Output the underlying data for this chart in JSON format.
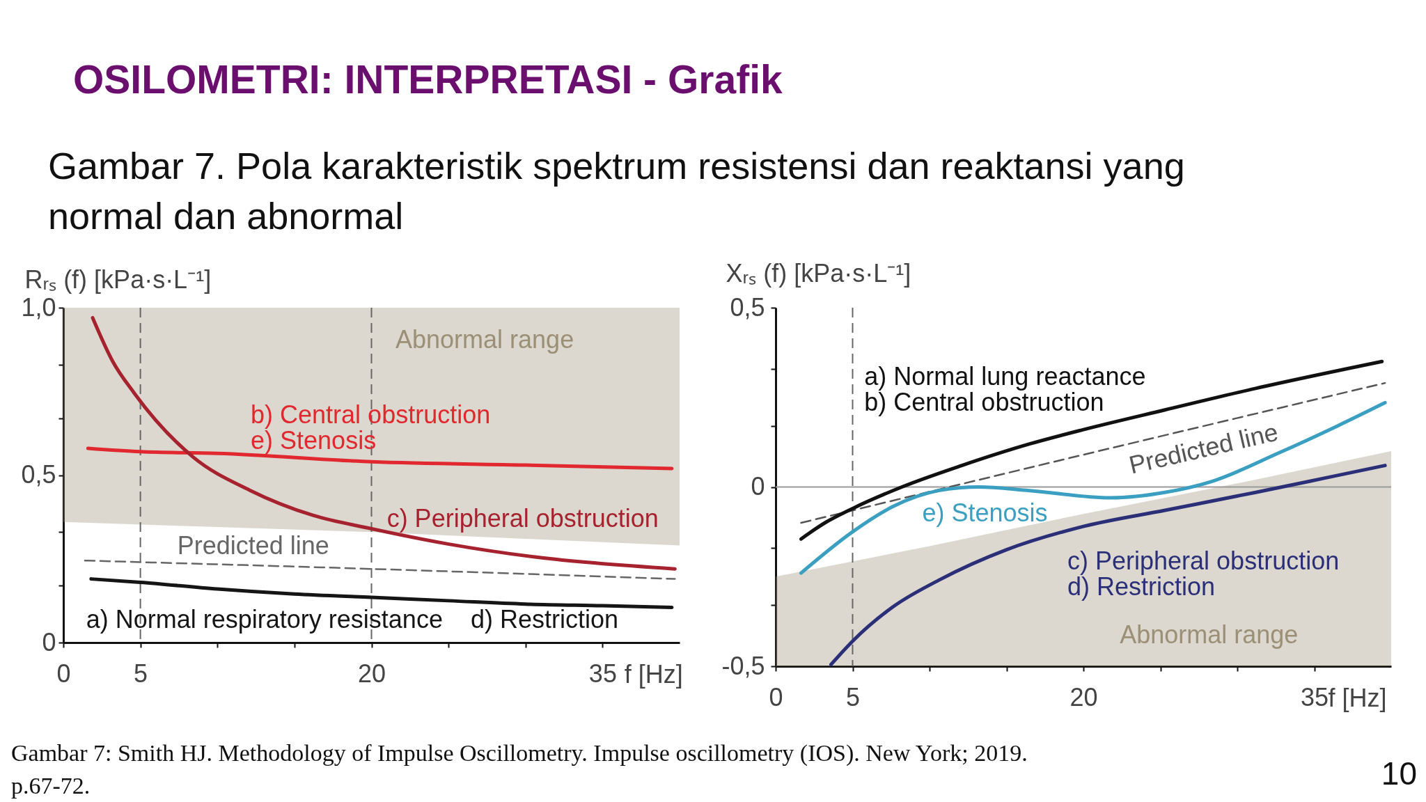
{
  "chart_data": [
    {
      "type": "line",
      "title": "OSILOMETRI: INTERPRETASI - Grafik",
      "subtitle": "Gambar 7. Pola karakteristik spektrum resistensi dan reaktansi yang normal dan abnormal",
      "xlabel": "f [Hz]",
      "ylabel": "Rᵣₛ (f) [kPa·s·L⁻¹]",
      "xlim": [
        0,
        40
      ],
      "xticks": [
        0,
        5,
        {
          "value": 10,
          "label": null
        },
        {
          "value": 15,
          "label": null
        },
        20,
        {
          "value": 25,
          "label": null
        },
        {
          "value": 30,
          "label": null
        },
        35
      ],
      "ylim": [
        0,
        1
      ],
      "yticks": [
        0,
        {
          "value": 0.17,
          "label": null
        },
        {
          "value": 0.33,
          "label": null
        },
        {
          "value": 0.5,
          "label": "0,5"
        },
        {
          "value": 0.67,
          "label": null
        },
        {
          "value": 0.83,
          "label": null
        },
        {
          "value": 1,
          "label": "1,0"
        }
      ],
      "ref_lines": [
        {
          "axis": "x",
          "value": 5,
          "color": "#666666",
          "line_style": "dashed"
        },
        {
          "axis": "x",
          "value": 20,
          "color": "#666666",
          "line_style": "dashed"
        }
      ],
      "series": [
        {
          "name": "Abnormal range",
          "color": "#9b9076",
          "x": [
            0,
            10,
            20,
            30,
            40
          ],
          "values": [
            null,
            null,
            null,
            null,
            null
          ],
          "lower": [
            0.36,
            0.345,
            0.33,
            0.31,
            0.29
          ],
          "upper": [
            1,
            1,
            1,
            1,
            1
          ]
        },
        {
          "name": "Predicted line",
          "color": "#666666",
          "line_style": "dashed",
          "x": [
            1.4,
            20,
            39.7
          ],
          "values": [
            0.245,
            0.22,
            0.19
          ]
        },
        {
          "name": "a) Normal respiratory resistance    d) Restriction",
          "color": "#151515",
          "x": [
            1.8,
            5,
            10,
            15,
            20,
            25,
            30,
            35,
            39.5
          ],
          "values": [
            0.19,
            0.18,
            0.16,
            0.145,
            0.135,
            0.125,
            0.115,
            0.11,
            0.105
          ]
        },
        {
          "name": "b) Central obstruction\ne) Stenosis",
          "color": "#e0282e",
          "x": [
            1.6,
            5,
            10,
            20,
            30,
            39.5
          ],
          "values": [
            0.58,
            0.57,
            0.565,
            0.54,
            0.53,
            0.52
          ]
        },
        {
          "name": "c) Peripheral obstruction",
          "color": "#a5222e",
          "x": [
            1.9,
            3.2,
            4.6,
            8.4,
            12.1,
            16.2,
            20,
            24.9,
            30.7,
            39.7
          ],
          "values": [
            0.97,
            0.84,
            0.745,
            0.555,
            0.455,
            0.38,
            0.34,
            0.295,
            0.255,
            0.22
          ]
        }
      ]
    },
    {
      "type": "line",
      "xlabel": "f [Hz]",
      "ylabel": "Xᵣₛ (f) [kPa·s·L⁻¹]",
      "xlim": [
        0,
        40
      ],
      "xticks": [
        0,
        5,
        {
          "value": 10,
          "label": null
        },
        {
          "value": 15,
          "label": null
        },
        20,
        {
          "value": 25,
          "label": null
        },
        {
          "value": 30,
          "label": null
        },
        35
      ],
      "ylim": [
        -0.5,
        0.5
      ],
      "yticks": [
        {
          "value": -0.5,
          "label": "-0,5"
        },
        {
          "value": -0.33,
          "label": null
        },
        {
          "value": -0.17,
          "label": null
        },
        0,
        {
          "value": 0.17,
          "label": null
        },
        {
          "value": 0.33,
          "label": null
        },
        {
          "value": 0.5,
          "label": "0,5"
        }
      ],
      "ref_lines": [
        {
          "axis": "x",
          "value": 5,
          "color": "#666666",
          "line_style": "dashed"
        },
        {
          "axis": "y",
          "value": 0,
          "color": "#9a9a9a",
          "line_style": "solid"
        }
      ],
      "series": [
        {
          "name": "Abnormal range",
          "color": "#9b9076",
          "x": [
            0,
            10,
            20,
            30,
            40
          ],
          "values": [
            null,
            null,
            null,
            null,
            null
          ],
          "lower": [
            -0.5,
            -0.5,
            -0.5,
            -0.5,
            -0.5
          ],
          "upper": [
            -0.25,
            -0.165,
            -0.075,
            0.01,
            0.1
          ]
        },
        {
          "name": "Predicted line",
          "color": "#555555",
          "line_style": "dashed",
          "x": [
            1.65,
            20,
            39.6
          ],
          "values": [
            -0.1,
            0.09,
            0.29
          ]
        },
        {
          "name": "a) Normal lung reactance\nb) Central obstruction",
          "color": "#111111",
          "x": [
            1.65,
            3.2,
            5,
            8.2,
            12.1,
            16.5,
            20,
            25.3,
            31.2,
            39.4
          ],
          "values": [
            -0.145,
            -0.1,
            -0.06,
            0,
            0.06,
            0.12,
            0.16,
            0.215,
            0.275,
            0.35
          ]
        },
        {
          "name": "e) Stenosis",
          "color": "#3a9fc0",
          "x": [
            1.65,
            5,
            7.6,
            10.6,
            13.2,
            16.5,
            21.8,
            25.3,
            28.3,
            32.7,
            36.5,
            39.6
          ],
          "values": [
            -0.24,
            -0.125,
            -0.055,
            -0.01,
            0,
            -0.01,
            -0.03,
            -0.015,
            0.015,
            0.095,
            0.17,
            0.235
          ]
        },
        {
          "name": "c) Peripheral obstruction\nd) Restriction",
          "color": "#2b2f78",
          "x": [
            3.6,
            5,
            7.6,
            10.6,
            15,
            20,
            25.3,
            31.2,
            35.7,
            39.6
          ],
          "values": [
            -0.495,
            -0.43,
            -0.335,
            -0.26,
            -0.175,
            -0.11,
            -0.065,
            -0.015,
            0.025,
            0.06
          ]
        }
      ],
      "annotations": [
        "Gambar 7: Smith HJ. Methodology of Impulse Oscillometry. Impulse oscillometry (IOS). New York; 2019. p.67-72.",
        "10"
      ]
    }
  ]
}
